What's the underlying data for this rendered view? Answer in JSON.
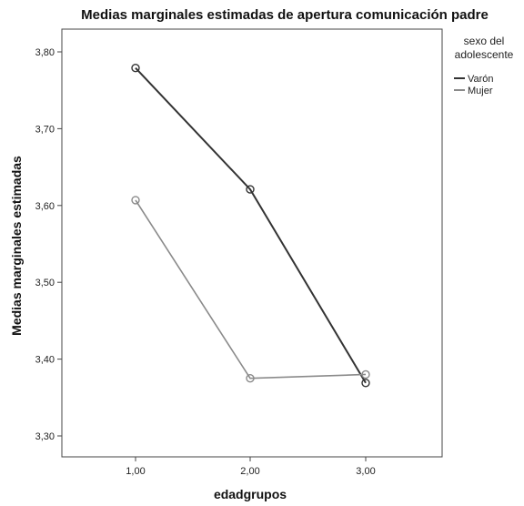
{
  "chart_data": {
    "type": "line",
    "title": "Medias marginales estimadas de apertura comunicación padre",
    "xlabel": "edadgrupos",
    "ylabel": "Medias marginales estimadas",
    "categories": [
      "1,00",
      "2,00",
      "3,00"
    ],
    "ylim": [
      3.3,
      3.8
    ],
    "yticks": [
      3.3,
      3.4,
      3.5,
      3.6,
      3.7,
      3.8
    ],
    "ytick_labels": [
      "3,30",
      "3,40",
      "3,50",
      "3,60",
      "3,70",
      "3,80"
    ],
    "grid": false,
    "legend": {
      "title_lines": [
        "sexo del",
        "adolescente"
      ],
      "placement": "right"
    },
    "series": [
      {
        "name": "Varón",
        "color": "#333333",
        "values": [
          3.779,
          3.621,
          3.369
        ]
      },
      {
        "name": "Mujer",
        "color": "#8a8a8a",
        "values": [
          3.607,
          3.375,
          3.38
        ]
      }
    ]
  }
}
